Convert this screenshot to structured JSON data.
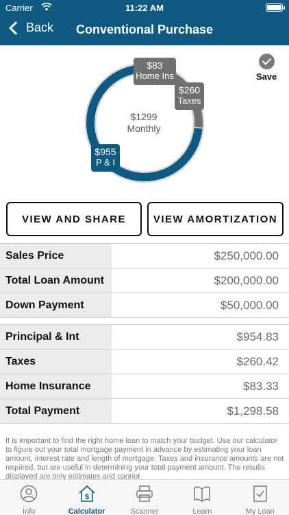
{
  "status": {
    "carrier": "Carrier",
    "time": "11:22 AM"
  },
  "nav": {
    "back_label": "Back",
    "title": "Conventional Purchase"
  },
  "save": {
    "label": "Save"
  },
  "chart_data": {
    "type": "pie",
    "categories": [
      "P & I",
      "Taxes",
      "Home Ins"
    ],
    "values": [
      955,
      260,
      83
    ],
    "colors": [
      "#0f5a82",
      "#707070",
      "#5a5a5a"
    ],
    "center": {
      "value": "$1299",
      "label": "Monthly"
    },
    "labels": {
      "pi": {
        "value": "$955",
        "name": "P & I"
      },
      "taxes": {
        "value": "$260",
        "name": "Taxes"
      },
      "ins": {
        "value": "$83",
        "name": "Home Ins"
      }
    }
  },
  "buttons": {
    "share": "VIEW AND SHARE",
    "amortization": "VIEW AMORTIZATION"
  },
  "loan_rows": [
    {
      "label": "Sales Price",
      "value": "$250,000.00"
    },
    {
      "label": "Total Loan Amount",
      "value": "$200,000.00"
    },
    {
      "label": "Down Payment",
      "value": "$50,000.00"
    }
  ],
  "payment_rows": [
    {
      "label": "Principal & Int",
      "value": "$954.83"
    },
    {
      "label": "Taxes",
      "value": "$260.42"
    },
    {
      "label": "Home Insurance",
      "value": "$83.33"
    },
    {
      "label": "Total Payment",
      "value": "$1,298.58"
    }
  ],
  "disclaimer": "It is important to find the right home loan to match your budget. Use our calculator to figure out your total mortgage payment in advance by estimating your loan amount, interest rate and length of mortgage. Taxes and insurance amounts are not required, but are useful in determining your total payment amount. The results displayed are only estimates and cannot",
  "tabs": [
    {
      "label": "Info",
      "icon": "person-icon",
      "active": false
    },
    {
      "label": "Calculator",
      "icon": "house-dollar-icon",
      "active": true
    },
    {
      "label": "Scanner",
      "icon": "scanner-icon",
      "active": false
    },
    {
      "label": "Learn",
      "icon": "book-icon",
      "active": false
    },
    {
      "label": "My Loan",
      "icon": "document-check-icon",
      "active": false
    }
  ]
}
